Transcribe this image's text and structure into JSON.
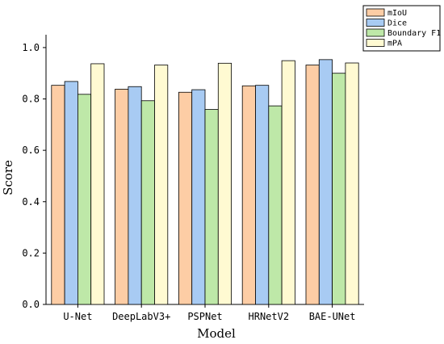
{
  "chart_data": {
    "type": "bar",
    "xlabel": "Model",
    "ylabel": "Score",
    "ylim": [
      0,
      1.05
    ],
    "yticks": [
      "0.0",
      "0.2",
      "0.4",
      "0.6",
      "0.8",
      "1.0"
    ],
    "categories": [
      "U-Net",
      "DeepLabV3+",
      "PSPNet",
      "HRNetV2",
      "BAE-UNet"
    ],
    "series": [
      {
        "name": "mIoU",
        "values": [
          0.853,
          0.838,
          0.826,
          0.851,
          0.932
        ],
        "color": "#FDCDA5",
        "border": "#D08A50"
      },
      {
        "name": "Dice",
        "values": [
          0.868,
          0.848,
          0.836,
          0.853,
          0.953
        ],
        "color": "#A8CBF3",
        "border": "#4E86C8"
      },
      {
        "name": "Boundary F1",
        "values": [
          0.818,
          0.793,
          0.759,
          0.773,
          0.9
        ],
        "color": "#BEE8A8",
        "border": "#6FAF52"
      },
      {
        "name": "mPA",
        "values": [
          0.937,
          0.932,
          0.939,
          0.949,
          0.94
        ],
        "color": "#FFFAD2",
        "border": "#B3A868"
      }
    ],
    "grid": false,
    "legend_position": "top-right"
  }
}
